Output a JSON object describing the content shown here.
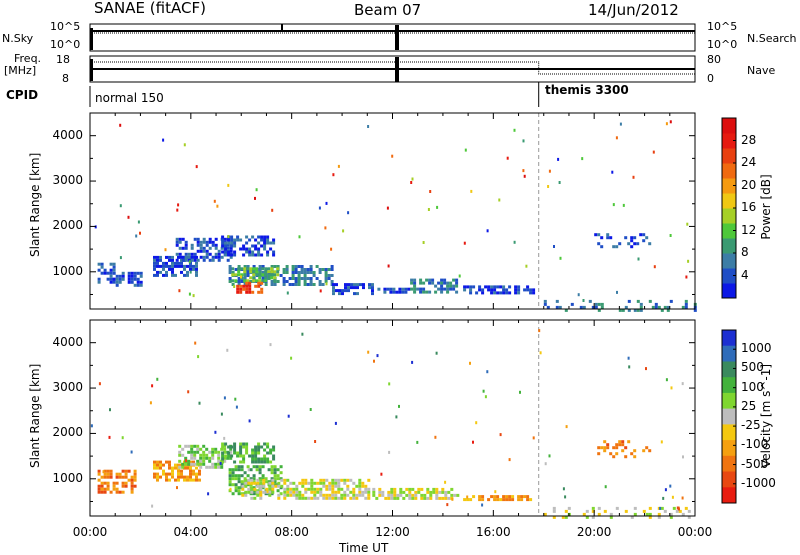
{
  "header": {
    "title": "SANAE (fitACF)",
    "beam": "Beam 07",
    "date": "14/Jun/2012"
  },
  "params": {
    "nsky_label": "N.Sky",
    "nsearch_label": "N.Search",
    "log_ticks": [
      "10^5",
      "10^0"
    ],
    "freq_label": "Freq.",
    "freq_unit": "[MHz]",
    "freq_ticks": [
      "18",
      "8"
    ],
    "nave_ticks": [
      "80",
      "0"
    ],
    "nave_label": "Nave",
    "cpid_label": "CPID",
    "cpid_segments": [
      {
        "name": "normal 150",
        "start": 0.0,
        "end": 17.8
      },
      {
        "name": "themis 3300",
        "start": 17.8,
        "end": 24.0
      }
    ]
  },
  "chart_data": [
    {
      "type": "heatmap",
      "name": "Power panel",
      "xlabel": "",
      "ylabel": "Slant Range [km]",
      "xlim": [
        0,
        24
      ],
      "ylim": [
        180,
        4500
      ],
      "yticks": [
        1000,
        2000,
        3000,
        4000
      ],
      "colorbar": {
        "label": "Power [dB]",
        "ticks": [
          "4",
          "8",
          "12",
          "16",
          "20",
          "24",
          "28"
        ],
        "colors": [
          "#0c18e6",
          "#1f4ec6",
          "#3c7da6",
          "#3a9a72",
          "#4ec83a",
          "#a6cf26",
          "#f0c814",
          "#f59a10",
          "#f06a10",
          "#e84010",
          "#e61a10",
          "#dc0e0e"
        ]
      },
      "regions": [
        {
          "x": [
            0.3,
            0.9
          ],
          "y": [
            800,
            1200
          ],
          "level": 1
        },
        {
          "x": [
            0.9,
            2.0
          ],
          "y": [
            700,
            1000
          ],
          "level": 1
        },
        {
          "x": [
            2.5,
            4.2
          ],
          "y": [
            950,
            1350
          ],
          "level": 1
        },
        {
          "x": [
            3.4,
            5.6
          ],
          "y": [
            1250,
            1750
          ],
          "level": 1
        },
        {
          "x": [
            5.2,
            7.3
          ],
          "y": [
            1400,
            1800
          ],
          "level": 1
        },
        {
          "x": [
            5.5,
            9.6
          ],
          "y": [
            700,
            1150
          ],
          "level": 2
        },
        {
          "x": [
            5.6,
            7.5
          ],
          "y": [
            800,
            1100
          ],
          "level": 4
        },
        {
          "x": [
            5.8,
            6.8
          ],
          "y": [
            580,
            780
          ],
          "level": 9
        },
        {
          "x": [
            9.6,
            11.2
          ],
          "y": [
            550,
            750
          ],
          "level": 1
        },
        {
          "x": [
            11.4,
            12.6
          ],
          "y": [
            550,
            650
          ],
          "level": 1
        },
        {
          "x": [
            12.7,
            14.6
          ],
          "y": [
            550,
            850
          ],
          "level": 2
        },
        {
          "x": [
            14.8,
            17.6
          ],
          "y": [
            550,
            700
          ],
          "level": 1
        },
        {
          "x": [
            20.0,
            22.2
          ],
          "y": [
            1550,
            1850
          ],
          "level": 1
        },
        {
          "x": [
            18.0,
            24.0
          ],
          "y": [
            180,
            380
          ],
          "level": 2
        }
      ]
    },
    {
      "type": "heatmap",
      "name": "Velocity panel",
      "xlabel": "Time UT",
      "ylabel": "Slant Range [km]",
      "xlim": [
        0,
        24
      ],
      "ylim": [
        180,
        4500
      ],
      "xticks": [
        "00:00",
        "04:00",
        "08:00",
        "12:00",
        "16:00",
        "20:00",
        "00:00"
      ],
      "yticks": [
        1000,
        2000,
        3000,
        4000
      ],
      "colorbar": {
        "label": "Velocity [m s^-1]",
        "ticks": [
          "1000",
          "500",
          "100",
          "25",
          "-25",
          "-100",
          "-500",
          "-1000"
        ],
        "colors": [
          "#1c2fd2",
          "#2f6cba",
          "#3a8a5e",
          "#43b23c",
          "#7fd630",
          "#bdbdbd",
          "#f4c810",
          "#f5a010",
          "#f07410",
          "#e84812",
          "#e81c10"
        ]
      },
      "regions": [
        {
          "x": [
            0.3,
            1.8
          ],
          "y": [
            700,
            1200
          ],
          "level": 8
        },
        {
          "x": [
            2.5,
            4.3
          ],
          "y": [
            1000,
            1400
          ],
          "level": 7
        },
        {
          "x": [
            3.5,
            5.6
          ],
          "y": [
            1250,
            1750
          ],
          "level": 4
        },
        {
          "x": [
            5.2,
            7.3
          ],
          "y": [
            1400,
            1800
          ],
          "level": 3
        },
        {
          "x": [
            5.5,
            7.6
          ],
          "y": [
            700,
            1300
          ],
          "level": 3
        },
        {
          "x": [
            6.0,
            11.0
          ],
          "y": [
            600,
            1000
          ],
          "level": 5
        },
        {
          "x": [
            11.2,
            14.6
          ],
          "y": [
            550,
            800
          ],
          "level": 5
        },
        {
          "x": [
            14.8,
            17.5
          ],
          "y": [
            520,
            640
          ],
          "level": 7
        },
        {
          "x": [
            20.0,
            22.2
          ],
          "y": [
            1500,
            1850
          ],
          "level": 8
        },
        {
          "x": [
            18.0,
            24.0
          ],
          "y": [
            180,
            380
          ],
          "level": 5
        }
      ]
    }
  ]
}
